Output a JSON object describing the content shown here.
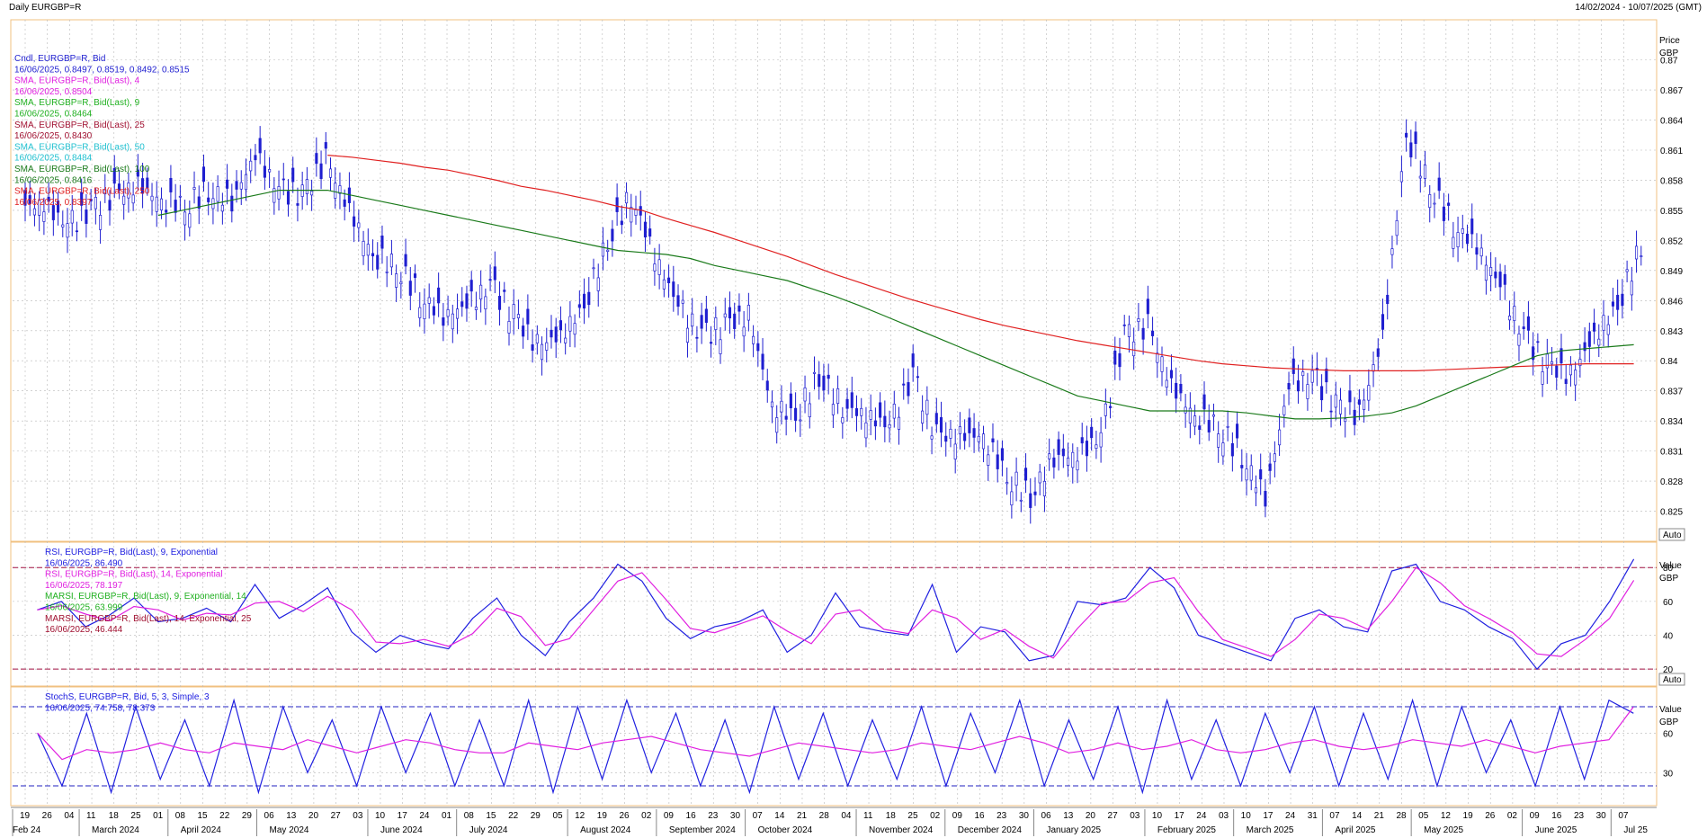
{
  "header": {
    "title": "Daily EURGBP=R",
    "range": "14/02/2024 - 10/07/2025 (GMT)"
  },
  "colors": {
    "candle": "#1f1fd0",
    "sma4": "#e020e0",
    "sma9": "#20b020",
    "sma25": "#a01030",
    "sma50": "#20c0d0",
    "sma100": "#1a7a1a",
    "sma250": "#e02020",
    "rsi9": "#2020e0",
    "rsi14": "#e020e0",
    "marsi9": "#20b020",
    "marsi14": "#a01030",
    "stochK": "#2020e0",
    "stochD": "#e020e0",
    "frame": "#f0c080",
    "grid": "#b8b8b8"
  },
  "price_panel": {
    "axis_title": [
      "Price",
      "GBP"
    ],
    "auto_label": "Auto",
    "legend": [
      {
        "text": "Cndl, EURGBP=R, Bid",
        "color": "#1f1fd0"
      },
      {
        "text": "16/06/2025, 0.8497, 0.8519, 0.8492, 0.8515",
        "color": "#1f1fd0"
      },
      {
        "text": "SMA, EURGBP=R, Bid(Last), 4",
        "color": "#e020e0"
      },
      {
        "text": "16/06/2025, 0.8504",
        "color": "#e020e0"
      },
      {
        "text": "SMA, EURGBP=R, Bid(Last), 9",
        "color": "#20b020"
      },
      {
        "text": "16/06/2025, 0.8464",
        "color": "#20b020"
      },
      {
        "text": "SMA, EURGBP=R, Bid(Last), 25",
        "color": "#a01030"
      },
      {
        "text": "16/06/2025, 0.8430",
        "color": "#a01030"
      },
      {
        "text": "SMA, EURGBP=R, Bid(Last), 50",
        "color": "#20c0d0"
      },
      {
        "text": "16/06/2025, 0.8484",
        "color": "#20c0d0"
      },
      {
        "text": "SMA, EURGBP=R, Bid(Last), 100",
        "color": "#1a7a1a"
      },
      {
        "text": "16/06/2025, 0.8416",
        "color": "#1a7a1a"
      },
      {
        "text": "SMA, EURGBP=R, Bid(Last), 250",
        "color": "#e02020"
      },
      {
        "text": "16/06/2025, 0.8397",
        "color": "#e02020"
      }
    ]
  },
  "rsi_panel": {
    "axis_title": [
      "Value",
      "GBP"
    ],
    "auto_label": "Auto",
    "legend": [
      {
        "text": "RSI, EURGBP=R, Bid(Last), 9, Exponential",
        "color": "#2020e0"
      },
      {
        "text": "16/06/2025, 86.490",
        "color": "#2020e0"
      },
      {
        "text": "RSI, EURGBP=R, Bid(Last), 14, Exponential",
        "color": "#e020e0"
      },
      {
        "text": "16/06/2025, 78.197",
        "color": "#e020e0"
      },
      {
        "text": "MARSI, EURGBP=R, Bid(Last), 9, Exponential, 14",
        "color": "#20b020"
      },
      {
        "text": "16/06/2025, 63.999",
        "color": "#20b020"
      },
      {
        "text": "MARSI, EURGBP=R, Bid(Last), 14, Exponential, 25",
        "color": "#a01030"
      },
      {
        "text": "16/06/2025, 46.444",
        "color": "#a01030"
      }
    ]
  },
  "stoch_panel": {
    "axis_title": [
      "Value",
      "GBP"
    ],
    "auto_label": "Auto",
    "legend": [
      {
        "text": "StochS, EURGBP=R, Bid, 5, 3, Simple, 3",
        "color": "#2020e0"
      },
      {
        "text": "16/06/2025, 74.758, 78.373",
        "color": "#2020e0"
      }
    ]
  },
  "chart_data": {
    "type": "line",
    "title": "Daily EURGBP=R",
    "date_range": "14/02/2024 - 10/07/2025 (GMT)",
    "price_ylim": [
      0.822,
      0.874
    ],
    "price_ticks": [
      0.825,
      0.828,
      0.831,
      0.834,
      0.837,
      0.84,
      0.843,
      0.846,
      0.849,
      0.852,
      0.855,
      0.858,
      0.861,
      0.864,
      0.867,
      0.87
    ],
    "rsi_ylim": [
      10,
      95
    ],
    "rsi_ticks": [
      20,
      40,
      60,
      80
    ],
    "rsi_levels": [
      20,
      80
    ],
    "stoch_ylim": [
      5,
      95
    ],
    "stoch_ticks": [
      30,
      60
    ],
    "stoch_levels": [
      20,
      80
    ],
    "x_day_labels": [
      "19",
      "26",
      "04",
      "11",
      "18",
      "25",
      "01",
      "08",
      "15",
      "22",
      "29",
      "06",
      "13",
      "20",
      "27",
      "03",
      "10",
      "17",
      "24",
      "01",
      "08",
      "15",
      "22",
      "29",
      "05",
      "12",
      "19",
      "26",
      "02",
      "09",
      "16",
      "23",
      "30",
      "07",
      "14",
      "21",
      "28",
      "04",
      "11",
      "18",
      "25",
      "02",
      "09",
      "16",
      "23",
      "30",
      "06",
      "13",
      "20",
      "27",
      "03",
      "10",
      "17",
      "24",
      "03",
      "10",
      "17",
      "24",
      "31",
      "07",
      "14",
      "21",
      "28",
      "05",
      "12",
      "19",
      "26",
      "02",
      "09",
      "16",
      "23",
      "30",
      "07"
    ],
    "x_month_labels": [
      "Feb 24",
      "March 2024",
      "April 2024",
      "May 2024",
      "June 2024",
      "July 2024",
      "August 2024",
      "September 2024",
      "October 2024",
      "November 2024",
      "December 2024",
      "January 2025",
      "February 2025",
      "March 2025",
      "April 2025",
      "May 2025",
      "June 2025",
      "Jul 25"
    ],
    "price_close_weekly": [
      0.8555,
      0.8535,
      0.855,
      0.8565,
      0.8575,
      0.856,
      0.8555,
      0.857,
      0.856,
      0.8605,
      0.857,
      0.8565,
      0.86,
      0.855,
      0.8505,
      0.8495,
      0.8465,
      0.8445,
      0.8455,
      0.8475,
      0.8445,
      0.8415,
      0.8425,
      0.8455,
      0.852,
      0.8565,
      0.8505,
      0.8455,
      0.8425,
      0.8435,
      0.8445,
      0.8355,
      0.8345,
      0.8385,
      0.8355,
      0.8345,
      0.8335,
      0.8385,
      0.8325,
      0.8325,
      0.8325,
      0.8285,
      0.8265,
      0.8305,
      0.8305,
      0.8325,
      0.8425,
      0.8435,
      0.8375,
      0.8345,
      0.8335,
      0.8305,
      0.8265,
      0.8375,
      0.8385,
      0.8355,
      0.8345,
      0.8425,
      0.8625,
      0.8575,
      0.8535,
      0.8515,
      0.8475,
      0.8425,
      0.8395,
      0.8385,
      0.8425,
      0.8455,
      0.8515
    ],
    "sma250_weekly": [
      null,
      null,
      null,
      null,
      null,
      null,
      null,
      null,
      null,
      null,
      null,
      null,
      0.8605,
      0.8603,
      0.86,
      0.8597,
      0.8593,
      0.859,
      0.8585,
      0.858,
      0.8574,
      0.857,
      0.8565,
      0.856,
      0.8554,
      0.855,
      0.8542,
      0.8535,
      0.8528,
      0.852,
      0.8512,
      0.8504,
      0.8495,
      0.8486,
      0.8478,
      0.847,
      0.8462,
      0.8455,
      0.8448,
      0.8441,
      0.8435,
      0.843,
      0.8425,
      0.842,
      0.8416,
      0.8412,
      0.8408,
      0.8404,
      0.84,
      0.8397,
      0.8395,
      0.8393,
      0.8392,
      0.8391,
      0.839,
      0.839,
      0.839,
      0.839,
      0.8391,
      0.8392,
      0.8393,
      0.8394,
      0.8395,
      0.8396,
      0.8397,
      0.8397,
      0.8397
    ],
    "sma100_weekly": [
      null,
      null,
      null,
      null,
      null,
      0.8545,
      0.855,
      0.8555,
      0.856,
      0.8565,
      0.857,
      0.857,
      0.857,
      0.8565,
      0.856,
      0.8555,
      0.855,
      0.8545,
      0.854,
      0.8535,
      0.853,
      0.8525,
      0.852,
      0.8515,
      0.851,
      0.8508,
      0.8506,
      0.8502,
      0.8495,
      0.849,
      0.8485,
      0.848,
      0.8472,
      0.8464,
      0.8455,
      0.8445,
      0.8435,
      0.8425,
      0.8415,
      0.8405,
      0.8395,
      0.8385,
      0.8375,
      0.8365,
      0.836,
      0.8355,
      0.835,
      0.835,
      0.835,
      0.835,
      0.8348,
      0.8345,
      0.8342,
      0.8342,
      0.8343,
      0.8345,
      0.8348,
      0.8355,
      0.8365,
      0.8375,
      0.8385,
      0.8395,
      0.8405,
      0.841,
      0.8412,
      0.8414,
      0.8416
    ],
    "rsi9_weekly": [
      55,
      60,
      45,
      52,
      62,
      48,
      50,
      56,
      48,
      70,
      50,
      58,
      68,
      42,
      30,
      40,
      35,
      32,
      50,
      62,
      40,
      28,
      48,
      62,
      82,
      72,
      50,
      38,
      45,
      48,
      55,
      30,
      40,
      65,
      45,
      42,
      40,
      70,
      30,
      45,
      42,
      25,
      28,
      60,
      58,
      62,
      80,
      68,
      40,
      35,
      30,
      25,
      50,
      55,
      45,
      42,
      78,
      82,
      60,
      55,
      45,
      38,
      20,
      35,
      40,
      60,
      85
    ],
    "stoch_k_weekly": [
      60,
      20,
      75,
      15,
      80,
      25,
      70,
      20,
      85,
      15,
      80,
      30,
      70,
      20,
      80,
      30,
      75,
      20,
      70,
      20,
      85,
      15,
      80,
      25,
      85,
      30,
      75,
      20,
      70,
      15,
      80,
      25,
      75,
      20,
      70,
      25,
      80,
      20,
      75,
      30,
      85,
      20,
      70,
      25,
      80,
      15,
      85,
      25,
      70,
      20,
      75,
      30,
      80,
      20,
      75,
      25,
      85,
      20,
      80,
      30,
      70,
      20,
      80,
      25,
      85,
      75
    ]
  }
}
